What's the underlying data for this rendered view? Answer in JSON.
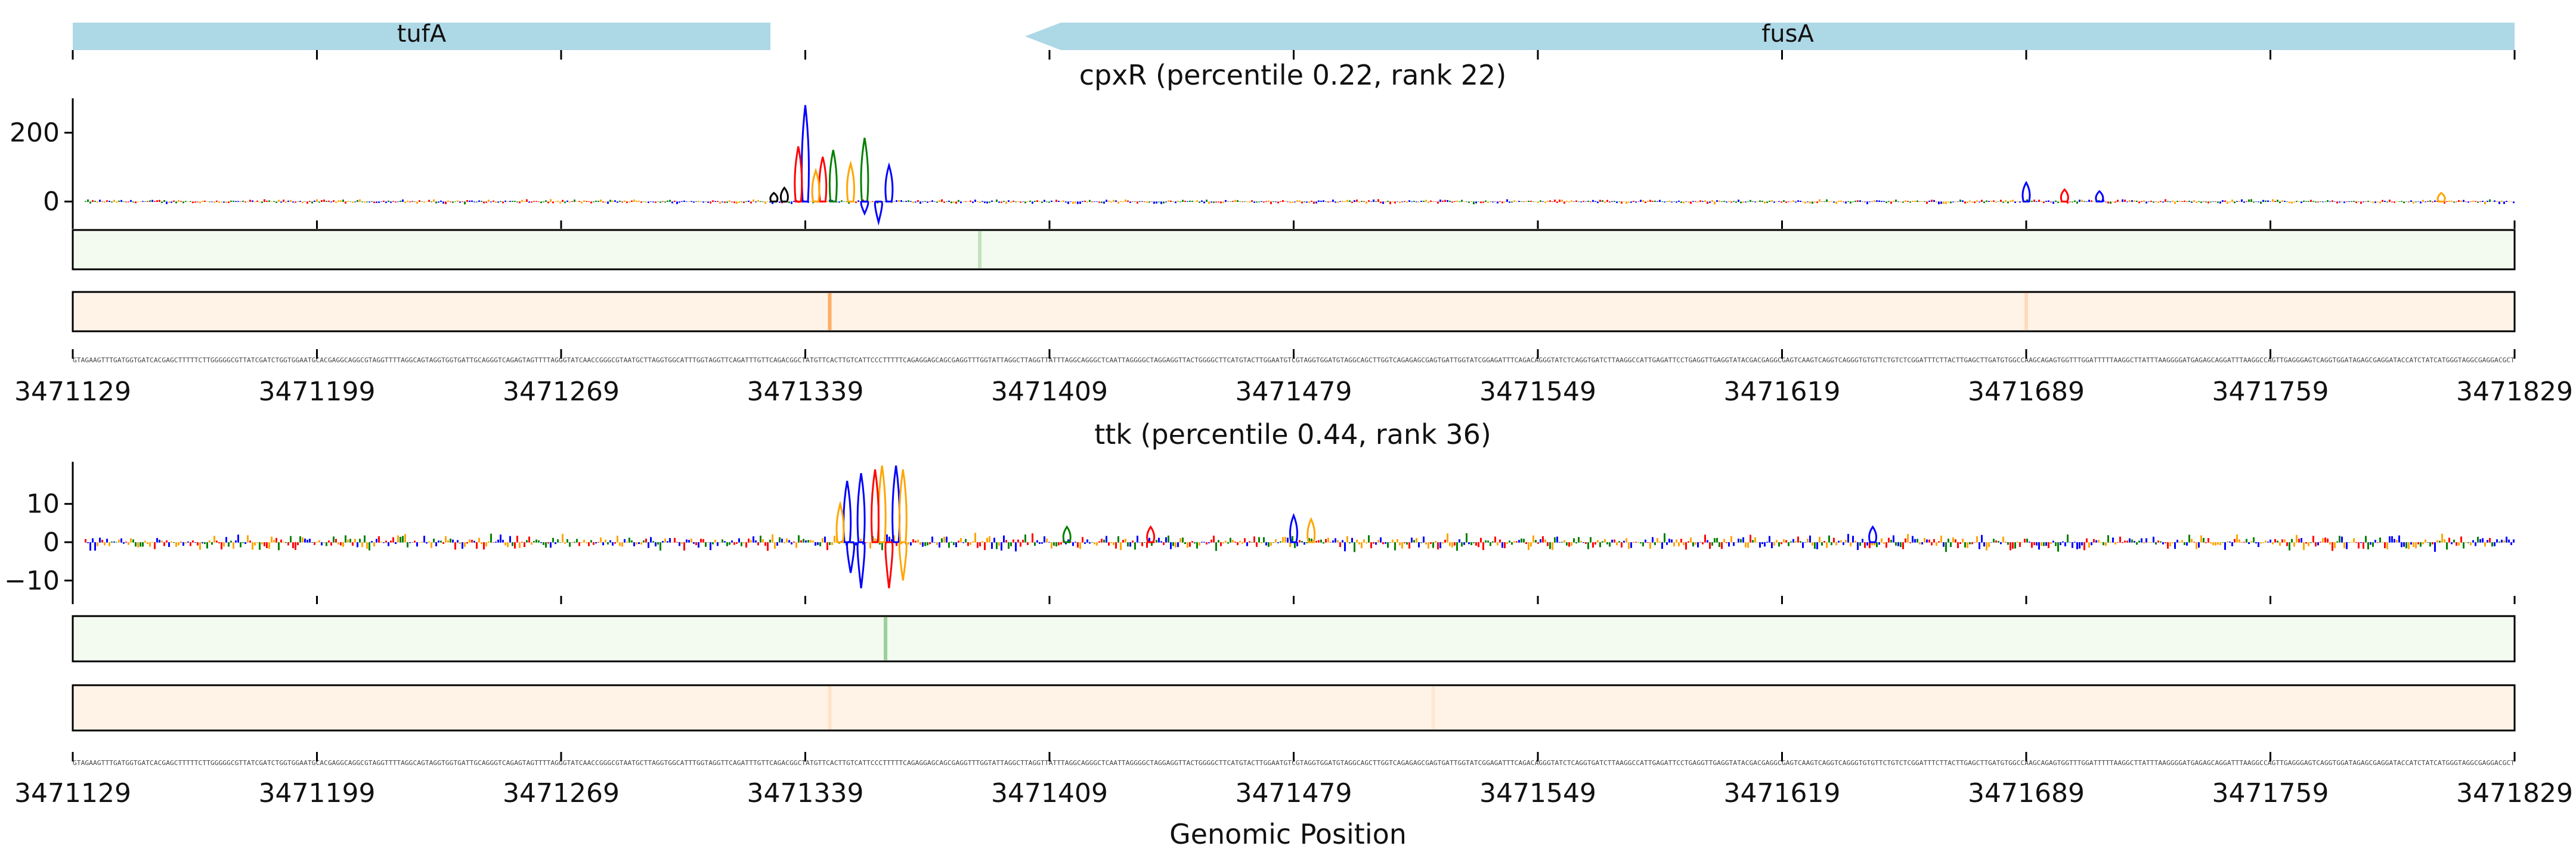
{
  "chart_data": {
    "type": "sequence_logo_tracks",
    "xlabel": "Genomic Position",
    "x_range": [
      3471129,
      3471829
    ],
    "x_ticks": [
      3471129,
      3471199,
      3471269,
      3471339,
      3471409,
      3471479,
      3471549,
      3471619,
      3471689,
      3471759,
      3471829
    ],
    "genes": [
      {
        "name": "tufA",
        "start": 3471129,
        "end": 3471329,
        "strand": "+",
        "color": "#add8e6"
      },
      {
        "name": "fusA",
        "start": 3471402,
        "end": 3471829,
        "strand": "-",
        "color": "#add8e6"
      }
    ],
    "panels": [
      {
        "title": "cpxR (percentile 0.22, rank 22)",
        "ylim": [
          -55,
          300
        ],
        "yticks": [
          0,
          200
        ],
        "peaks": [
          {
            "x": 3471339,
            "y": 280,
            "color": "#0000ff"
          },
          {
            "x": 3471337,
            "y": 160,
            "color": "#ff0000"
          },
          {
            "x": 3471344,
            "y": 130,
            "color": "#ff0000"
          },
          {
            "x": 3471347,
            "y": 150,
            "color": "#008000"
          },
          {
            "x": 3471342,
            "y": 90,
            "color": "#ffa500"
          },
          {
            "x": 3471356,
            "y": 185,
            "color": "#008000"
          },
          {
            "x": 3471352,
            "y": 110,
            "color": "#ffa500"
          },
          {
            "x": 3471356,
            "y": -35,
            "color": "#0000ff"
          },
          {
            "x": 3471360,
            "y": -60,
            "color": "#0000ff"
          },
          {
            "x": 3471363,
            "y": 105,
            "color": "#0000ff"
          },
          {
            "x": 3471333,
            "y": 40,
            "color": "#000000"
          },
          {
            "x": 3471330,
            "y": 25,
            "color": "#000000"
          },
          {
            "x": 3471689,
            "y": 55,
            "color": "#0000ff"
          },
          {
            "x": 3471700,
            "y": 35,
            "color": "#ff0000"
          },
          {
            "x": 3471710,
            "y": 30,
            "color": "#0000ff"
          },
          {
            "x": 3471808,
            "y": 25,
            "color": "#ffa500"
          }
        ],
        "green_track": [
          {
            "x": 3471389,
            "alpha": 0.25
          }
        ],
        "orange_track": [
          {
            "x": 3471346,
            "alpha": 0.6
          },
          {
            "x": 3471689,
            "alpha": 0.2
          }
        ]
      },
      {
        "title": "ttk (percentile 0.44, rank 36)",
        "ylim": [
          -14,
          21
        ],
        "yticks": [
          10,
          0,
          -10
        ],
        "peaks": [
          {
            "x": 3471361,
            "y": 20,
            "color": "#ffa500"
          },
          {
            "x": 3471365,
            "y": 20,
            "color": "#0000ff"
          },
          {
            "x": 3471367,
            "y": 19,
            "color": "#ffa500"
          },
          {
            "x": 3471363,
            "y": -12,
            "color": "#ff0000"
          },
          {
            "x": 3471359,
            "y": 19,
            "color": "#ff0000"
          },
          {
            "x": 3471355,
            "y": 18,
            "color": "#0000ff"
          },
          {
            "x": 3471351,
            "y": 16,
            "color": "#0000ff"
          },
          {
            "x": 3471349,
            "y": 10,
            "color": "#ffa500"
          },
          {
            "x": 3471355,
            "y": -12,
            "color": "#0000ff"
          },
          {
            "x": 3471367,
            "y": -10,
            "color": "#ffa500"
          },
          {
            "x": 3471352,
            "y": -8,
            "color": "#0000ff"
          },
          {
            "x": 3471479,
            "y": 7,
            "color": "#0000ff"
          },
          {
            "x": 3471484,
            "y": 6,
            "color": "#ffa500"
          },
          {
            "x": 3471438,
            "y": 4,
            "color": "#ff0000"
          },
          {
            "x": 3471645,
            "y": 4,
            "color": "#0000ff"
          },
          {
            "x": 3471414,
            "y": 4,
            "color": "#008000"
          }
        ],
        "green_track": [
          {
            "x": 3471362,
            "alpha": 0.45
          }
        ],
        "orange_track": [
          {
            "x": 3471346,
            "alpha": 0.15
          },
          {
            "x": 3471519,
            "alpha": 0.1
          }
        ]
      }
    ],
    "sequence": "GTAGAAGTTTGATGGTGATCACGAGCTTTTTCTTGGGGGCGTTATCGATCTGGTGGAATGCACGAGGCAGGCGTAGGTTTTAGGCAGTAGGTGGTGATTGCAGGGTCAGAGTAGTTTTAGGGTATCAACCGGGCGTAATGCTTAGGTGGCATTTGGTAGGTTCAGATTTGTTCAGACGGCTATGTTCACTTGTCATTCCCTTTTTCAGAGGAGCAGCGAGGTTTGGTATTAGGCTTAGGTTATTTAGGCAGGGCTCAATTAGGGGCTAGGAGGTTACTGGGGCTTCATGTACTTGGAATGTCGTAGGTGGATGTAGGCAGCTTGGTCAGAGAGCGAGTGATTGGTATCGGAGATTTCAGACAGGGTATCTCAGGTGATCTTAAGGCCATTGAGATTCCTGAGGTTGAGGTATACGACGAGGCGAGTCAAGTCAGGTCAGGGTGTGTTCTGTCTCGGATTTCTTACTTGAGCTTGATGTGGCCAAGCAGAGTGGTTTGGATTTTTAAGGCTTATTTAAGGGGATGAGAGCAGGATTTAAGGCCAGTTGAGGGAGTCAGGTGGATAGAGCGAGGATACCATCTATCATGGGTAGGCGAGGACGCT"
  }
}
